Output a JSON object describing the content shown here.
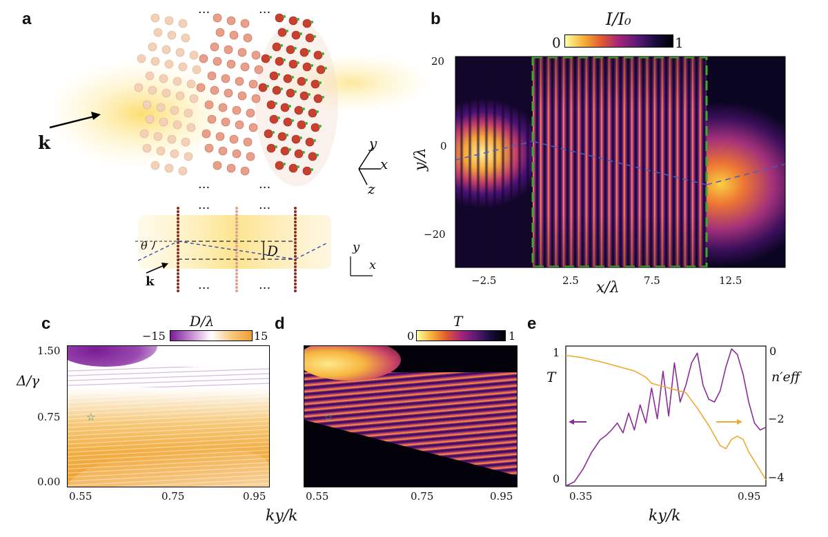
{
  "panels": {
    "a": {
      "label": "a",
      "k_label": "k",
      "theta_label": "θ",
      "D_label": "D",
      "axis_labels": {
        "y": "y",
        "x": "x",
        "z": "z"
      },
      "ellipsis": "···"
    },
    "b": {
      "label": "b",
      "colorbar_label": "I/I₀",
      "colorbar_min": "0",
      "colorbar_max": "1",
      "y_label": "y/λ",
      "x_label": "x/λ",
      "y_ticks": [
        "20",
        "0",
        "−20"
      ],
      "x_ticks": [
        "−2.5",
        "2.5",
        "7.5",
        "12.5"
      ]
    },
    "c": {
      "label": "c",
      "colorbar_label": "D/λ",
      "colorbar_min": "−15",
      "colorbar_max": "15",
      "y_label": "Δ/γ",
      "y_ticks": [
        "1.50",
        "0.75",
        "0.00"
      ],
      "x_ticks": [
        "0.55",
        "0.75",
        "0.95"
      ]
    },
    "d": {
      "label": "d",
      "colorbar_label": "T",
      "colorbar_min": "0",
      "colorbar_max": "1",
      "x_ticks": [
        "0.55",
        "0.75",
        "0.95"
      ]
    },
    "e": {
      "label": "e",
      "left_label": "T",
      "right_label": "n′eff",
      "left_ticks": [
        "1",
        "0"
      ],
      "right_ticks": [
        "0",
        "−2",
        "−4"
      ],
      "x_ticks": [
        "0.35",
        "0.95"
      ]
    },
    "shared_xlabel": "ky/k"
  },
  "colors": {
    "purple": "#8b2a9a",
    "orange": "#f0a830",
    "green_dash": "#3daa2a",
    "blue_dash": "#4a5fbf"
  },
  "chart_data": [
    {
      "type": "heatmap",
      "title": "b",
      "xlabel": "x/λ",
      "ylabel": "y/λ",
      "xlim": [
        -5,
        15
      ],
      "ylim": [
        -30,
        20
      ],
      "colorbar": {
        "label": "I/I₀",
        "range": [
          0,
          1
        ]
      }
    },
    {
      "type": "heatmap",
      "title": "c",
      "xlabel": "ky/k",
      "ylabel": "Δ/γ",
      "xlim": [
        0.53,
        0.97
      ],
      "ylim": [
        0,
        1.5
      ],
      "colorbar": {
        "label": "D/λ",
        "range": [
          -15,
          15
        ]
      },
      "marker": {
        "x": 0.6,
        "y": 0.75
      }
    },
    {
      "type": "heatmap",
      "title": "d",
      "xlabel": "ky/k",
      "ylabel": "Δ/γ",
      "xlim": [
        0.53,
        0.97
      ],
      "ylim": [
        0,
        1.5
      ],
      "colorbar": {
        "label": "T",
        "range": [
          0,
          1
        ]
      },
      "marker": {
        "x": 0.6,
        "y": 0.75
      }
    },
    {
      "type": "line",
      "title": "e",
      "xlabel": "ky/k",
      "xlim": [
        0.3,
        1.0
      ],
      "series": [
        {
          "name": "T",
          "axis": "left",
          "ylim": [
            0,
            1
          ],
          "x": [
            0.3,
            0.33,
            0.36,
            0.39,
            0.42,
            0.44,
            0.46,
            0.48,
            0.5,
            0.52,
            0.54,
            0.56,
            0.58,
            0.6,
            0.62,
            0.64,
            0.66,
            0.68,
            0.7,
            0.72,
            0.74,
            0.76,
            0.78,
            0.8,
            0.82,
            0.84,
            0.86,
            0.88,
            0.9,
            0.92,
            0.94,
            0.96,
            0.98,
            1.0
          ],
          "y": [
            0.0,
            0.03,
            0.12,
            0.24,
            0.33,
            0.36,
            0.4,
            0.45,
            0.38,
            0.52,
            0.4,
            0.58,
            0.45,
            0.7,
            0.48,
            0.82,
            0.5,
            0.88,
            0.6,
            0.72,
            0.88,
            0.95,
            0.72,
            0.62,
            0.6,
            0.68,
            0.85,
            0.98,
            0.94,
            0.8,
            0.6,
            0.45,
            0.4,
            0.42
          ]
        },
        {
          "name": "n′eff",
          "axis": "right",
          "ylim": [
            -4.3,
            0.2
          ],
          "x": [
            0.3,
            0.36,
            0.42,
            0.48,
            0.54,
            0.58,
            0.6,
            0.64,
            0.68,
            0.72,
            0.76,
            0.8,
            0.84,
            0.86,
            0.88,
            0.9,
            0.92,
            0.94,
            0.96,
            0.98,
            1.0
          ],
          "y": [
            -0.1,
            -0.18,
            -0.3,
            -0.45,
            -0.6,
            -0.8,
            -1.0,
            -1.1,
            -1.2,
            -1.3,
            -1.8,
            -2.35,
            -3.0,
            -3.1,
            -2.8,
            -2.7,
            -2.8,
            -3.2,
            -3.5,
            -3.8,
            -4.1
          ]
        }
      ]
    }
  ]
}
